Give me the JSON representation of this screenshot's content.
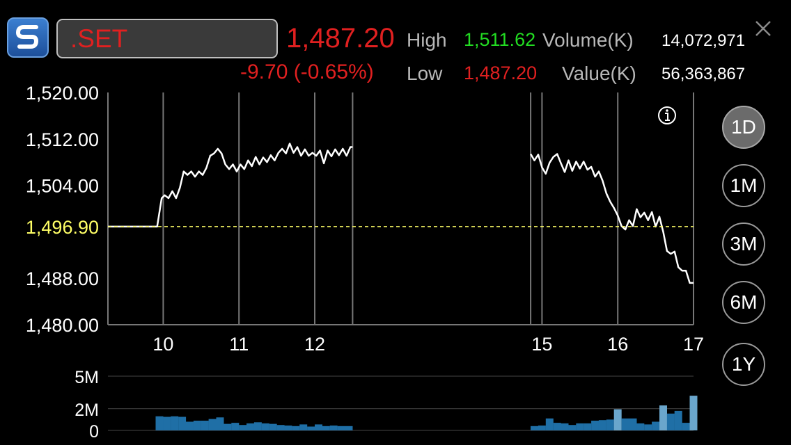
{
  "header": {
    "symbol": ".SET",
    "price": "1,487.20",
    "change": "-9.70 (-0.65%)",
    "high_label": "High",
    "high_value": "1,511.62",
    "low_label": "Low",
    "low_value": "1,487.20",
    "volume_label": "Volume(K)",
    "volume_value": "14,072,971",
    "value_label": "Value(K)",
    "value_value": "56,363,867"
  },
  "colors": {
    "down": "#e02020",
    "up": "#22dd22",
    "line": "#ffffff",
    "reference": "#ffff66",
    "volume_bar": "#1f6fa6",
    "volume_bar_light": "#6aa6cc"
  },
  "icons": {
    "logo": "app-logo-icon",
    "close": "close-icon",
    "info": "info-icon"
  },
  "periods": [
    "1D",
    "1M",
    "3M",
    "6M",
    "1Y"
  ],
  "selected_period": "1D",
  "chart_data": [
    {
      "type": "line",
      "title": "",
      "y_ticks": [
        "1,520.00",
        "1,512.00",
        "1,504.00",
        "1,488.00",
        "1,480.00"
      ],
      "y_tick_values": [
        1520,
        1512,
        1504,
        1488,
        1480
      ],
      "ylim": [
        1480,
        1520
      ],
      "reference_value": 1496.9,
      "reference_label": "1,496.90",
      "x_ticks": [
        "10",
        "11",
        "12",
        "15",
        "16",
        "17"
      ],
      "x_tick_values": [
        10,
        11,
        12,
        15,
        16,
        17
      ],
      "xlim": [
        9.27,
        17
      ],
      "session_gap": [
        12.5,
        14.85
      ],
      "series": [
        {
          "points": [
            [
              9.27,
              1496.9
            ],
            [
              9.92,
              1496.9
            ],
            [
              9.98,
              1501.8
            ],
            [
              10.02,
              1502.3
            ],
            [
              10.07,
              1501.8
            ],
            [
              10.12,
              1503.0
            ],
            [
              10.17,
              1501.8
            ],
            [
              10.22,
              1503.6
            ],
            [
              10.27,
              1506.4
            ],
            [
              10.32,
              1505.8
            ],
            [
              10.37,
              1506.4
            ],
            [
              10.42,
              1505.5
            ],
            [
              10.47,
              1506.4
            ],
            [
              10.52,
              1505.8
            ],
            [
              10.57,
              1507.0
            ],
            [
              10.62,
              1509.1
            ],
            [
              10.67,
              1509.5
            ],
            [
              10.72,
              1510.3
            ],
            [
              10.77,
              1509.5
            ],
            [
              10.82,
              1507.6
            ],
            [
              10.87,
              1506.8
            ],
            [
              10.92,
              1507.6
            ],
            [
              10.97,
              1506.4
            ],
            [
              11.02,
              1507.6
            ],
            [
              11.07,
              1506.8
            ],
            [
              11.12,
              1508.3
            ],
            [
              11.17,
              1507.3
            ],
            [
              11.22,
              1508.9
            ],
            [
              11.27,
              1507.6
            ],
            [
              11.32,
              1508.8
            ],
            [
              11.37,
              1508.0
            ],
            [
              11.42,
              1509.2
            ],
            [
              11.47,
              1508.3
            ],
            [
              11.52,
              1509.6
            ],
            [
              11.57,
              1510.3
            ],
            [
              11.62,
              1509.5
            ],
            [
              11.67,
              1511.2
            ],
            [
              11.72,
              1509.6
            ],
            [
              11.77,
              1510.6
            ],
            [
              11.82,
              1509.1
            ],
            [
              11.87,
              1510.2
            ],
            [
              11.92,
              1509.1
            ],
            [
              11.97,
              1509.6
            ],
            [
              12.02,
              1509.1
            ],
            [
              12.07,
              1510.0
            ],
            [
              12.12,
              1507.8
            ],
            [
              12.17,
              1510.0
            ],
            [
              12.22,
              1509.0
            ],
            [
              12.27,
              1510.2
            ],
            [
              12.32,
              1509.2
            ],
            [
              12.37,
              1510.3
            ],
            [
              12.42,
              1509.1
            ],
            [
              12.47,
              1510.6
            ],
            [
              12.5,
              1510.6
            ]
          ]
        },
        {
          "points": [
            [
              14.85,
              1509.4
            ],
            [
              14.9,
              1508.3
            ],
            [
              14.95,
              1509.3
            ],
            [
              15.0,
              1507.1
            ],
            [
              15.05,
              1506.0
            ],
            [
              15.1,
              1507.9
            ],
            [
              15.15,
              1508.9
            ],
            [
              15.2,
              1509.4
            ],
            [
              15.25,
              1507.8
            ],
            [
              15.3,
              1506.3
            ],
            [
              15.35,
              1508.3
            ],
            [
              15.4,
              1506.5
            ],
            [
              15.45,
              1508.1
            ],
            [
              15.5,
              1506.9
            ],
            [
              15.55,
              1508.1
            ],
            [
              15.6,
              1506.7
            ],
            [
              15.65,
              1507.2
            ],
            [
              15.7,
              1505.5
            ],
            [
              15.75,
              1506.4
            ],
            [
              15.8,
              1504.8
            ],
            [
              15.85,
              1502.6
            ],
            [
              15.9,
              1501.2
            ],
            [
              15.95,
              1500.1
            ],
            [
              16.0,
              1498.8
            ],
            [
              16.05,
              1497.0
            ],
            [
              16.1,
              1496.4
            ],
            [
              16.15,
              1498.0
            ],
            [
              16.2,
              1497.0
            ],
            [
              16.25,
              1499.9
            ],
            [
              16.3,
              1498.5
            ],
            [
              16.35,
              1499.3
            ],
            [
              16.4,
              1498.0
            ],
            [
              16.45,
              1499.4
            ],
            [
              16.5,
              1496.9
            ],
            [
              16.55,
              1498.6
            ],
            [
              16.6,
              1496.0
            ],
            [
              16.65,
              1492.7
            ],
            [
              16.7,
              1492.2
            ],
            [
              16.75,
              1492.6
            ],
            [
              16.8,
              1489.9
            ],
            [
              16.85,
              1489.3
            ],
            [
              16.9,
              1489.3
            ],
            [
              16.95,
              1487.2
            ],
            [
              17.0,
              1487.2
            ]
          ]
        }
      ]
    },
    {
      "type": "bar",
      "title": "",
      "y_ticks": [
        "5M",
        "2M",
        "0"
      ],
      "y_tick_values": [
        5,
        2,
        0
      ],
      "ylim": [
        0,
        5
      ],
      "unit": "M shares",
      "bars": [
        [
          9.95,
          1.3
        ],
        [
          10.05,
          1.25
        ],
        [
          10.15,
          1.3
        ],
        [
          10.25,
          1.25
        ],
        [
          10.35,
          0.8
        ],
        [
          10.45,
          0.9
        ],
        [
          10.55,
          0.9
        ],
        [
          10.65,
          1.05
        ],
        [
          10.75,
          1.2
        ],
        [
          10.85,
          0.6
        ],
        [
          10.95,
          0.7
        ],
        [
          11.05,
          0.5
        ],
        [
          11.15,
          0.65
        ],
        [
          11.25,
          0.75
        ],
        [
          11.35,
          0.65
        ],
        [
          11.45,
          0.6
        ],
        [
          11.55,
          0.5
        ],
        [
          11.65,
          0.45
        ],
        [
          11.75,
          0.4
        ],
        [
          11.85,
          0.55
        ],
        [
          11.95,
          0.35
        ],
        [
          12.05,
          0.55
        ],
        [
          12.15,
          0.4
        ],
        [
          12.25,
          0.45
        ],
        [
          12.35,
          0.4
        ],
        [
          12.45,
          0.4
        ],
        [
          14.9,
          0.4
        ],
        [
          15.0,
          0.45
        ],
        [
          15.1,
          1.1
        ],
        [
          15.2,
          0.7
        ],
        [
          15.3,
          0.65
        ],
        [
          15.4,
          0.5
        ],
        [
          15.5,
          0.65
        ],
        [
          15.6,
          0.65
        ],
        [
          15.7,
          0.9
        ],
        [
          15.8,
          0.95
        ],
        [
          15.9,
          1.0
        ],
        [
          16.0,
          1.95
        ],
        [
          16.1,
          1.1
        ],
        [
          16.2,
          1.1
        ],
        [
          16.3,
          0.65
        ],
        [
          16.4,
          0.55
        ],
        [
          16.5,
          0.8
        ],
        [
          16.6,
          2.3
        ],
        [
          16.7,
          1.55
        ],
        [
          16.8,
          1.8
        ],
        [
          16.9,
          0.7
        ],
        [
          17.0,
          3.2
        ],
        [
          17.1,
          0.15
        ]
      ]
    }
  ]
}
